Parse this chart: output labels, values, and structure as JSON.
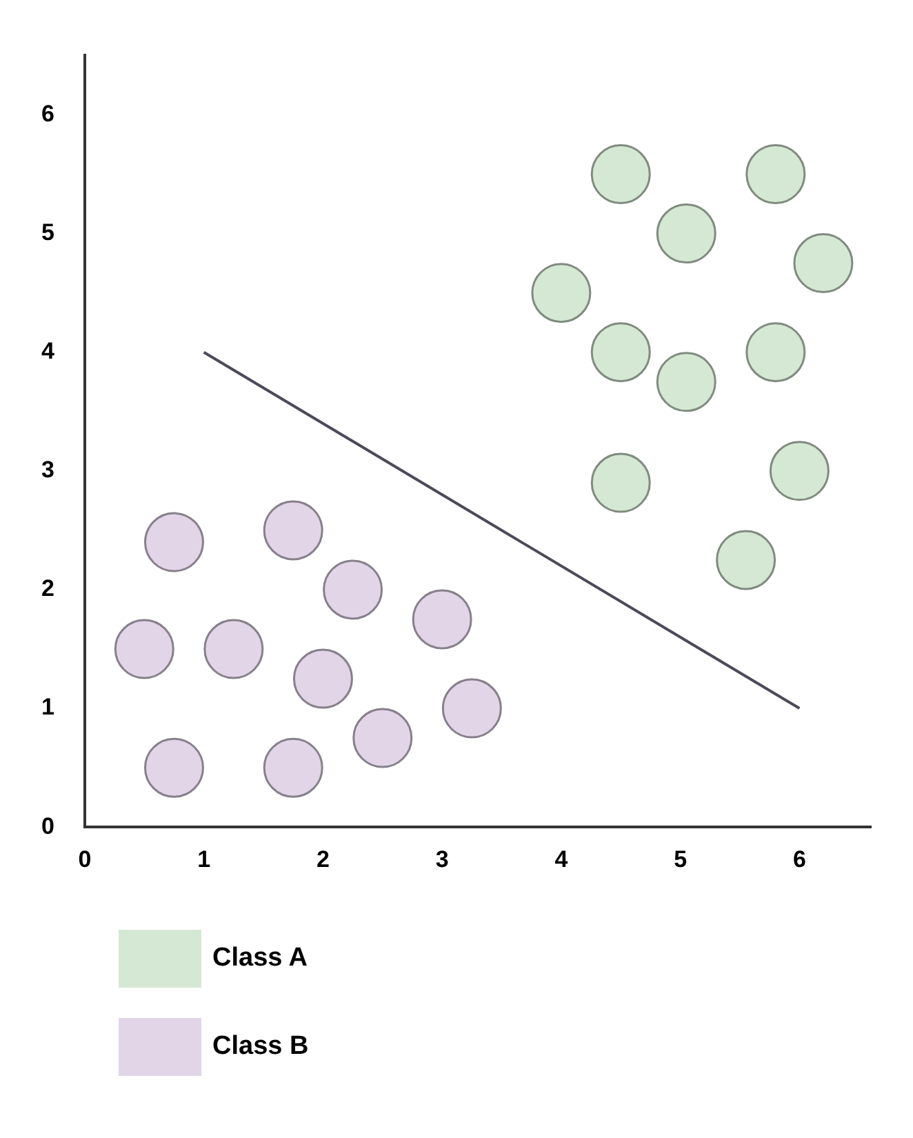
{
  "chart_data": {
    "type": "scatter",
    "series": [
      {
        "name": "Class A",
        "color": "#d5e8d4",
        "x": [
          4.5,
          5.8,
          5.05,
          6.2,
          4,
          4.5,
          5.8,
          5.05,
          4.5,
          6,
          5.55
        ],
        "values": [
          5.5,
          5.5,
          5,
          4.75,
          4.5,
          4,
          4,
          3.75,
          2.9,
          3,
          2.25
        ]
      },
      {
        "name": "Class B",
        "color": "#e1d5e7",
        "x": [
          0.75,
          1.75,
          2.25,
          3,
          0.5,
          1.25,
          2,
          3.25,
          2.5,
          0.75,
          1.75
        ],
        "values": [
          2.4,
          2.5,
          2,
          1.75,
          1.5,
          1.5,
          1.25,
          1,
          0.75,
          0.5,
          0.5
        ]
      },
      {
        "type": "line",
        "color": "#4a4a5a",
        "marker": "none",
        "x": [
          1,
          6
        ],
        "values": [
          4,
          1
        ]
      }
    ],
    "xlim": [
      0,
      6.6
    ],
    "ylim": [
      0,
      6.5
    ],
    "xticks": [
      0,
      1,
      2,
      3,
      4,
      5,
      6
    ],
    "yticks": [
      0,
      1,
      2,
      3,
      4,
      5,
      6
    ],
    "grid": false,
    "legend": "bottom left",
    "marker": "circle"
  }
}
